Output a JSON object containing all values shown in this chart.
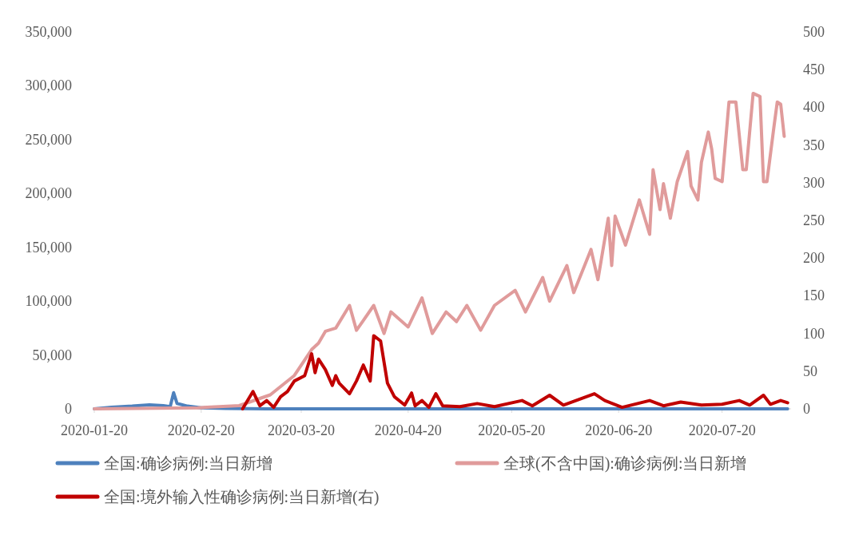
{
  "chart_data": {
    "type": "line",
    "xlim": [
      "2020-01-20",
      "2020-08-09"
    ],
    "xticks": [
      "2020-01-20",
      "2020-02-20",
      "2020-03-20",
      "2020-04-20",
      "2020-05-20",
      "2020-06-20",
      "2020-07-20"
    ],
    "ylim": [
      0,
      350000
    ],
    "yticks": [
      0,
      {
        "value": 50000,
        "label": "50,000"
      },
      {
        "value": 100000,
        "label": "100,000"
      },
      {
        "value": 150000,
        "label": "150,000"
      },
      {
        "value": 200000,
        "label": "200,000"
      },
      {
        "value": 250000,
        "label": "250,000"
      },
      {
        "value": 300000,
        "label": "300,000"
      },
      {
        "value": 350000,
        "label": "350,000"
      }
    ],
    "y2lim": [
      0,
      500
    ],
    "y2ticks": [
      0,
      50,
      100,
      150,
      200,
      250,
      300,
      350,
      400,
      450,
      500
    ],
    "legend": "bottom",
    "series": [
      {
        "name": "全国:确诊病例:当日新增",
        "color": "#4e81bd",
        "x": [
          "2020-01-20",
          "2020-01-25",
          "2020-01-31",
          "2020-02-05",
          "2020-02-09",
          "2020-02-11",
          "2020-02-12",
          "2020-02-13",
          "2020-02-16",
          "2020-02-20",
          "2020-02-27",
          "2020-03-10",
          "2020-08-08"
        ],
        "values": [
          0,
          1500,
          2500,
          3800,
          3000,
          2000,
          15000,
          5000,
          2500,
          1000,
          400,
          100,
          100
        ]
      },
      {
        "name": "全球(不含中国):确诊病例:当日新增",
        "color": "#e09b9b",
        "x": [
          "2020-01-20",
          "2020-02-19",
          "2020-03-02",
          "2020-03-11",
          "2020-03-18",
          "2020-03-23",
          "2020-03-25",
          "2020-03-27",
          "2020-03-30",
          "2020-04-03",
          "2020-04-05",
          "2020-04-07",
          "2020-04-10",
          "2020-04-13",
          "2020-04-15",
          "2020-04-20",
          "2020-04-24",
          "2020-04-27",
          "2020-05-01",
          "2020-05-04",
          "2020-05-07",
          "2020-05-11",
          "2020-05-15",
          "2020-05-21",
          "2020-05-24",
          "2020-05-29",
          "2020-05-31",
          "2020-06-05",
          "2020-06-07",
          "2020-06-12",
          "2020-06-14",
          "2020-06-17",
          "2020-06-18",
          "2020-06-19",
          "2020-06-22",
          "2020-06-26",
          "2020-06-29",
          "2020-06-30",
          "2020-07-02",
          "2020-07-03",
          "2020-07-05",
          "2020-07-07",
          "2020-07-10",
          "2020-07-11",
          "2020-07-13",
          "2020-07-14",
          "2020-07-16",
          "2020-07-17",
          "2020-07-18",
          "2020-07-20",
          "2020-07-22",
          "2020-07-24",
          "2020-07-26",
          "2020-07-27",
          "2020-07-29",
          "2020-07-31",
          "2020-08-01",
          "2020-08-02",
          "2020-08-04",
          "2020-08-05",
          "2020-08-06",
          "2020-08-07"
        ],
        "values": [
          0,
          1000,
          3000,
          13000,
          31000,
          55000,
          61000,
          72000,
          75000,
          96000,
          73000,
          82000,
          96000,
          70000,
          90000,
          76000,
          103000,
          70000,
          90000,
          81000,
          96000,
          73000,
          96000,
          110000,
          90000,
          122000,
          100000,
          133000,
          108000,
          148000,
          120000,
          177000,
          133000,
          179000,
          152000,
          194000,
          162000,
          222000,
          185000,
          209000,
          177000,
          211000,
          239000,
          207000,
          194000,
          229000,
          257000,
          241000,
          214000,
          211000,
          285000,
          285000,
          222000,
          222000,
          293000,
          290000,
          211000,
          211000,
          261000,
          285000,
          283000,
          253000
        ]
      },
      {
        "name": "全国:境外输入性确诊病例:当日新增(右)",
        "color": "#c00000",
        "axis": "y2",
        "x": [
          "2020-03-03",
          "2020-03-06",
          "2020-03-08",
          "2020-03-10",
          "2020-03-12",
          "2020-03-14",
          "2020-03-16",
          "2020-03-18",
          "2020-03-21",
          "2020-03-23",
          "2020-03-24",
          "2020-03-25",
          "2020-03-27",
          "2020-03-29",
          "2020-03-30",
          "2020-03-31",
          "2020-04-03",
          "2020-04-05",
          "2020-04-07",
          "2020-04-09",
          "2020-04-10",
          "2020-04-12",
          "2020-04-14",
          "2020-04-16",
          "2020-04-19",
          "2020-04-21",
          "2020-04-22",
          "2020-04-24",
          "2020-04-26",
          "2020-04-28",
          "2020-04-30",
          "2020-05-05",
          "2020-05-10",
          "2020-05-15",
          "2020-05-23",
          "2020-05-26",
          "2020-05-31",
          "2020-06-04",
          "2020-06-13",
          "2020-06-16",
          "2020-06-21",
          "2020-06-29",
          "2020-07-03",
          "2020-07-08",
          "2020-07-14",
          "2020-07-20",
          "2020-07-25",
          "2020-07-28",
          "2020-08-01",
          "2020-08-03",
          "2020-08-06",
          "2020-08-08"
        ],
        "values": [
          0,
          23,
          4,
          11,
          2,
          16,
          23,
          37,
          44,
          73,
          48,
          66,
          52,
          31,
          44,
          34,
          20,
          37,
          58,
          37,
          97,
          90,
          34,
          16,
          5,
          21,
          4,
          11,
          2,
          20,
          4,
          3,
          7,
          3,
          11,
          4,
          18,
          5,
          20,
          11,
          2,
          11,
          4,
          9,
          5,
          6,
          11,
          5,
          18,
          6,
          11,
          8
        ]
      }
    ]
  }
}
